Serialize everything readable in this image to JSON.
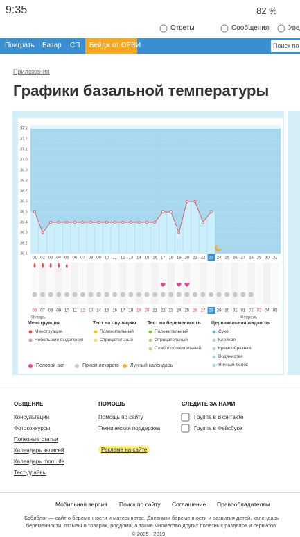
{
  "status": {
    "time": "9:35",
    "battery": "82 %"
  },
  "header": {
    "links": [
      "Ответы",
      "Сообщения",
      "Уведо"
    ]
  },
  "nav": {
    "items": [
      "Поиграть",
      "Базар",
      "СП"
    ],
    "badge": "Бейдж от ОРВИ",
    "search": "Поиск по с"
  },
  "breadcrumb": "Приложения",
  "title": "Графики базальной температуры",
  "chart_data": {
    "type": "line",
    "y_unit": "C°",
    "categories": [
      "01",
      "02",
      "03",
      "04",
      "05",
      "06",
      "07",
      "08",
      "09",
      "10",
      "11",
      "12",
      "13",
      "14",
      "15",
      "16",
      "17",
      "18",
      "19",
      "20",
      "21",
      "22",
      "23",
      "24",
      "25",
      "26",
      "27",
      "28",
      "29",
      "30",
      "31"
    ],
    "values": [
      36.5,
      36.3,
      36.4,
      36.4,
      36.4,
      36.4,
      36.4,
      36.4,
      36.4,
      36.4,
      36.4,
      36.4,
      36.4,
      36.4,
      36.4,
      36.4,
      36.5,
      36.5,
      36.3,
      36.6,
      36.6,
      36.4,
      36.5,
      null,
      null,
      null,
      null,
      null,
      null,
      null,
      null
    ],
    "color": "#e05a6a",
    "ylim": [
      36.1,
      37.3
    ],
    "yticks": [
      36.1,
      36.2,
      36.3,
      36.4,
      36.5,
      36.6,
      36.7,
      36.8,
      36.9,
      {
        "value": 37,
        "label": "37.0"
      },
      37.1,
      37.2,
      37.3
    ],
    "bottom_days": [
      "06",
      "07",
      "08",
      "09",
      "10",
      "11",
      "12",
      "13",
      "14",
      "15",
      "16",
      "17",
      "18",
      "19",
      "20",
      "21",
      "22",
      "23",
      "24",
      "25",
      "26",
      "27",
      "28",
      "29",
      "30",
      "31",
      "01",
      "02",
      "03",
      "04",
      "05"
    ],
    "months": [
      "Январь",
      "Февраль"
    ]
  },
  "legend": [
    {
      "title": "Менструация",
      "items": [
        "Менструация",
        "Небольшие выделения"
      ]
    },
    {
      "title": "Тест на овуляцию",
      "items": [
        "Положительный",
        "Отрицательный"
      ]
    },
    {
      "title": "Тест на беременность",
      "items": [
        "Положительный",
        "Отрицательный",
        "Слабоположительный"
      ]
    },
    {
      "title": "Цервикальная жидкость",
      "items": [
        "Сухо",
        "Клейкая",
        "Кремообразная",
        "Водянистая",
        "Яичный белок"
      ]
    }
  ],
  "legend_extra": [
    "Половой акт",
    "Прием лекарств",
    "Лунный календарь"
  ],
  "footer": [
    {
      "title": "ОБЩЕНИЕ",
      "links": [
        "Консультации",
        "Фотоконкурсы",
        "Полезные статьи",
        "Календарь записей",
        "Календарь mom.life",
        "Тест-драйвы"
      ]
    },
    {
      "title": "ПОМОЩЬ",
      "links": [
        "Помощь по сайту",
        "Техническая поддержка",
        "Реклама на сайте"
      ]
    },
    {
      "title": "СЛЕДИТЕ ЗА НАМИ",
      "links": [
        "Группа в Вконтакте",
        "Группа в Фейсбуке"
      ]
    }
  ],
  "bottom": {
    "links": [
      "Мобильная версия",
      "Поиск по сайту",
      "Соглашение",
      "Правообладателям"
    ],
    "text": "Бэбиблог — сайт о беременности и материнстве. Дневники беременности и развития детей, календарь беременности, отзывы о товарах, роддома, а также множество других полезных разделов и сервисов.",
    "copyright": "© 2005 - 2019"
  }
}
